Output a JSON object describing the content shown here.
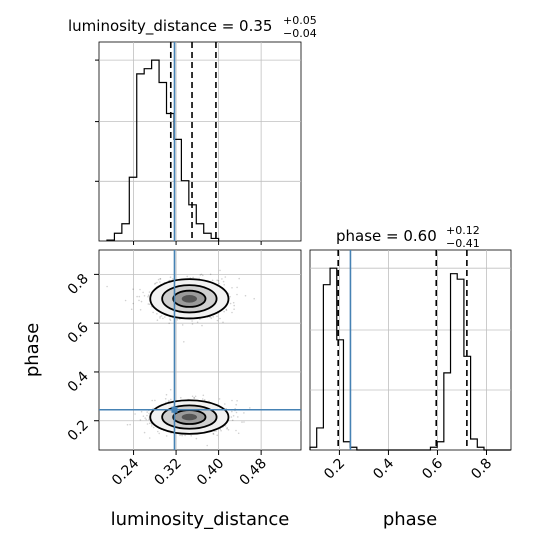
{
  "chart_data": {
    "type": "corner",
    "colors": {
      "truth": "#4682b4",
      "hist": "#000000",
      "grid": "#c0c0c0"
    },
    "parameters": [
      {
        "name": "luminosity_distance",
        "median": "0.35",
        "err_plus": "+0.05",
        "err_minus": "−0.04",
        "title_prefix": "luminosity_distance = 0.35",
        "range": [
          0.175,
          0.555
        ],
        "ticks": [
          0.24,
          0.32,
          0.4,
          0.48
        ],
        "tick_labels": [
          "0.24",
          "0.32",
          "0.40",
          "0.48"
        ],
        "quantiles": [
          0.31,
          0.35,
          0.395
        ],
        "truth": 0.317,
        "hist": {
          "bin_start": 0.19,
          "bin_width": 0.014,
          "counts": [
            0.5,
            4.5,
            10,
            37,
            97,
            100,
            105,
            92,
            74,
            59,
            35,
            21,
            10,
            4.5,
            1.5
          ]
        }
      },
      {
        "name": "phase",
        "median": "0.60",
        "err_plus": "+0.12",
        "err_minus": "−0.41",
        "title_prefix": "phase = 0.60",
        "range": [
          0.08,
          0.9
        ],
        "ticks": [
          0.2,
          0.4,
          0.6,
          0.8
        ],
        "tick_labels": [
          "0.2",
          "0.4",
          "0.6",
          "0.8"
        ],
        "quantiles": [
          0.195,
          0.595,
          0.72
        ],
        "truth": 0.245,
        "hist": {
          "bin_start": 0.08,
          "bin_width": 0.0273,
          "counts": [
            1,
            8,
            60,
            66,
            40,
            3,
            1,
            0,
            0,
            0,
            0,
            0,
            0,
            0,
            0,
            0,
            0,
            0,
            1,
            3,
            28,
            64,
            62,
            34,
            4,
            1,
            0,
            0,
            0,
            0
          ]
        }
      }
    ],
    "joint": {
      "x_param": "luminosity_distance",
      "y_param": "phase",
      "modes": [
        {
          "x": 0.345,
          "y": 0.7,
          "sx": 0.032,
          "sy": 0.035
        },
        {
          "x": 0.345,
          "y": 0.215,
          "sx": 0.032,
          "sy": 0.03
        }
      ],
      "truth": [
        0.317,
        0.245
      ]
    },
    "labels": {
      "x_bottom_left": "luminosity_distance",
      "x_bottom_right": "phase",
      "y_left": "phase"
    }
  }
}
